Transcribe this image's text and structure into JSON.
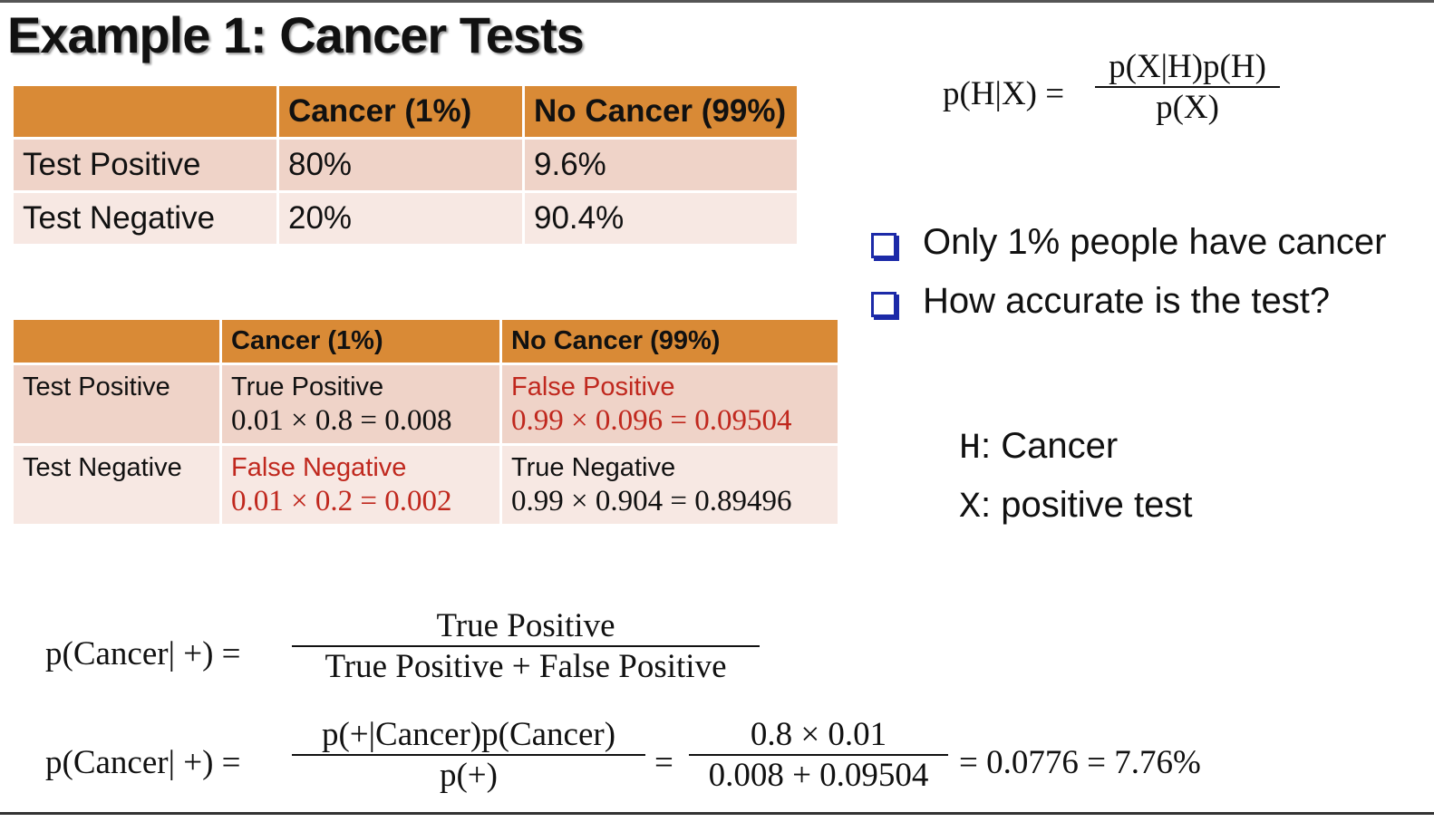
{
  "title": "Example 1: Cancer Tests",
  "table1": {
    "headers": [
      "",
      "Cancer (1%)",
      "No Cancer (99%)"
    ],
    "rows": [
      [
        "Test Positive",
        "80%",
        "9.6%"
      ],
      [
        "Test Negative",
        "20%",
        "90.4%"
      ]
    ]
  },
  "table2": {
    "headers": [
      "",
      "Cancer (1%)",
      "No Cancer (99%)"
    ],
    "rows": [
      {
        "label": "Test Positive",
        "cells": [
          {
            "name": "True Positive",
            "formula": "0.01 × 0.8 = 0.008",
            "color": "#111111"
          },
          {
            "name": "False Positive",
            "formula": "0.99 × 0.096 = 0.09504",
            "color": "#c0281e"
          }
        ]
      },
      {
        "label": "Test Negative",
        "cells": [
          {
            "name": "False Negative",
            "formula": "0.01 × 0.2 = 0.002",
            "color": "#c0281e"
          },
          {
            "name": "True Negative",
            "formula": "0.99 × 0.904 = 0.89496",
            "color": "#111111"
          }
        ]
      }
    ]
  },
  "bayes": {
    "lhs": "p(H|X) =",
    "numerator": "p(X|H)p(H)",
    "denominator": "p(X)"
  },
  "bullets": [
    "Only 1% people have cancer",
    "How accurate is the test?"
  ],
  "definitions": [
    {
      "symbol": "H",
      "text": ": Cancer"
    },
    {
      "symbol": "X",
      "text": ": positive test"
    }
  ],
  "formula1": {
    "lhs": "p(Cancer| +) =",
    "numerator": "True Positive",
    "denominator": "True Positive + False Positive"
  },
  "formula2": {
    "lhs": "p(Cancer| +) =",
    "frac1_num": "p(+|Cancer)p(Cancer)",
    "frac1_den": "p(+)",
    "eq": "=",
    "frac2_num": "0.8 × 0.01",
    "frac2_den": "0.008 + 0.09504",
    "result": "= 0.0776 = 7.76%"
  },
  "colors": {
    "header_orange": "#d98a36",
    "row_dark": "#efd3c8",
    "row_light": "#f7e8e3",
    "highlight_red": "#c0281e",
    "bullet_blue": "#1c2aa8"
  }
}
